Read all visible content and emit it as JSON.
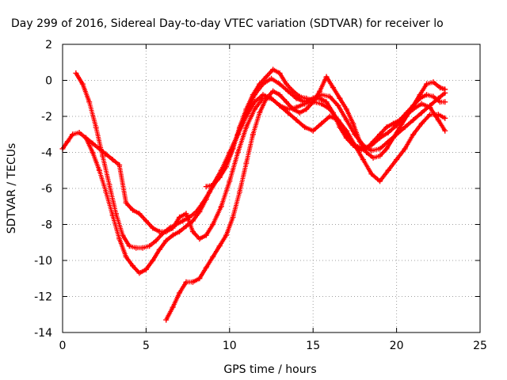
{
  "chart_data": {
    "type": "scatter",
    "title": "Day 299 of 2016, Sidereal Day-to-day VTEC variation (SDTVAR) for receiver lo",
    "xlabel": "GPS time / hours",
    "ylabel": "SDTVAR / TECUs",
    "xlim": [
      0,
      25
    ],
    "ylim": [
      -14,
      2
    ],
    "x_ticks": [
      0,
      5,
      10,
      15,
      20,
      25
    ],
    "y_ticks": [
      -14,
      -12,
      -10,
      -8,
      -6,
      -4,
      -2,
      0,
      2
    ],
    "grid": true,
    "marker": "+",
    "color": "#ff0000",
    "series": [
      {
        "x": [
          0,
          0.3,
          0.6,
          1.0,
          1.4,
          1.8,
          2.2,
          2.6,
          3.0,
          3.4,
          3.8,
          4.2,
          4.6,
          5.0,
          5.4,
          5.8,
          6.2,
          6.6,
          7.0,
          7.4,
          7.8,
          8.2,
          8.6,
          9.0,
          9.5,
          10.0,
          10.5,
          11.0,
          11.5,
          12.0,
          12.5,
          13.0,
          13.5,
          14.0,
          14.5,
          15.0,
          15.5,
          16.0,
          16.5,
          17.0,
          17.5,
          18.0,
          18.5,
          19.0,
          19.5,
          20.0,
          20.5,
          21.0,
          21.5,
          22.0,
          22.5,
          22.9
        ],
        "y": [
          -3.8,
          -3.4,
          -3.0,
          -2.9,
          -3.2,
          -4.0,
          -5.0,
          -6.2,
          -7.5,
          -8.8,
          -9.8,
          -10.3,
          -10.7,
          -10.5,
          -10.0,
          -9.4,
          -8.9,
          -8.6,
          -8.4,
          -8.1,
          -7.8,
          -7.3,
          -6.6,
          -5.8,
          -5.0,
          -4.0,
          -3.0,
          -2.0,
          -1.2,
          -0.8,
          -1.0,
          -1.4,
          -1.6,
          -1.5,
          -1.3,
          -1.2,
          -1.3,
          -1.6,
          -2.2,
          -3.0,
          -3.6,
          -3.8,
          -3.6,
          -3.2,
          -2.9,
          -2.5,
          -2.0,
          -1.6,
          -1.3,
          -1.5,
          -2.2,
          -2.8
        ]
      },
      {
        "x": [
          0.8,
          1.2,
          1.6,
          2.0,
          2.4,
          2.8,
          3.2,
          3.6,
          4.0,
          4.4,
          4.8,
          5.2,
          5.6,
          6.0,
          6.4,
          6.8,
          7.2,
          7.6,
          8.0,
          8.4,
          8.8,
          9.2,
          9.6,
          10.0,
          10.5,
          11.0,
          11.5,
          12.0,
          12.5,
          13.0,
          13.5,
          14.0,
          14.5,
          15.0,
          15.5,
          16.0,
          16.5,
          17.0,
          17.5,
          18.0,
          18.5,
          19.0,
          19.5,
          20.0,
          20.5,
          21.0,
          21.5,
          22.0,
          22.5,
          22.9
        ],
        "y": [
          0.4,
          -0.2,
          -1.2,
          -2.6,
          -4.2,
          -5.8,
          -7.4,
          -8.6,
          -9.2,
          -9.3,
          -9.3,
          -9.2,
          -8.9,
          -8.5,
          -8.2,
          -8.0,
          -7.8,
          -7.6,
          -7.3,
          -6.8,
          -6.2,
          -5.6,
          -5.0,
          -4.2,
          -3.0,
          -1.8,
          -0.8,
          -0.2,
          0.1,
          -0.2,
          -0.6,
          -1.0,
          -1.2,
          -1.0,
          -0.8,
          -0.9,
          -1.4,
          -2.2,
          -3.0,
          -3.6,
          -3.9,
          -3.8,
          -3.4,
          -3.0,
          -2.6,
          -2.2,
          -1.8,
          -1.4,
          -1.0,
          -0.7
        ]
      },
      {
        "x": [
          1.4,
          1.8,
          2.2,
          2.6,
          3.0,
          3.4,
          3.8,
          4.2,
          4.6,
          5.0,
          5.4,
          5.8,
          6.2,
          6.6,
          7.0,
          7.4,
          7.8,
          8.2,
          8.6,
          9.0,
          9.5,
          10.0,
          10.5,
          11.0,
          11.5,
          12.0,
          12.5,
          13.0,
          13.5,
          14.0,
          14.5,
          15.0,
          15.5,
          16.0,
          16.5,
          17.0,
          17.5,
          18.0,
          18.5,
          19.0,
          19.5,
          20.0,
          20.5,
          21.0,
          21.5,
          22.0,
          22.5,
          22.9
        ],
        "y": [
          -3.2,
          -3.5,
          -3.8,
          -4.1,
          -4.4,
          -4.7,
          -6.8,
          -7.2,
          -7.4,
          -7.8,
          -8.2,
          -8.4,
          -8.4,
          -8.2,
          -7.6,
          -7.4,
          -8.4,
          -8.8,
          -8.6,
          -8.0,
          -7.0,
          -5.6,
          -4.0,
          -2.6,
          -1.6,
          -1.0,
          -1.0,
          -1.4,
          -1.8,
          -2.2,
          -2.6,
          -2.8,
          -2.4,
          -2.0,
          -2.2,
          -2.8,
          -3.6,
          -4.4,
          -5.2,
          -5.6,
          -5.0,
          -4.4,
          -3.8,
          -3.0,
          -2.4,
          -1.9,
          -1.9,
          -2.1
        ]
      },
      {
        "x": [
          6.2,
          6.6,
          7.0,
          7.4,
          7.8,
          8.2,
          8.6,
          9.0,
          9.4,
          9.8,
          10.2,
          10.6,
          11.0,
          11.4,
          11.8,
          12.2,
          12.6,
          13.0,
          13.4,
          13.8,
          14.2,
          14.6,
          15.0,
          15.4,
          15.8,
          16.2,
          16.6,
          17.0,
          17.4,
          17.8,
          18.2,
          18.6,
          19.0,
          19.4,
          19.8,
          20.2,
          20.6,
          21.0,
          21.4,
          21.8,
          22.2,
          22.6,
          22.9
        ],
        "y": [
          -13.3,
          -12.6,
          -11.8,
          -11.2,
          -11.2,
          -11.0,
          -10.4,
          -9.8,
          -9.2,
          -8.6,
          -7.6,
          -6.2,
          -4.6,
          -3.0,
          -1.8,
          -1.0,
          -0.6,
          -0.8,
          -1.2,
          -1.6,
          -1.8,
          -1.6,
          -1.2,
          -0.6,
          0.2,
          -0.4,
          -1.0,
          -1.6,
          -2.4,
          -3.4,
          -4.0,
          -4.3,
          -4.2,
          -3.8,
          -3.2,
          -2.6,
          -2.0,
          -1.4,
          -0.8,
          -0.2,
          -0.1,
          -0.4,
          -0.5
        ]
      },
      {
        "x": [
          8.6,
          9.0,
          9.4,
          9.8,
          10.2,
          10.6,
          11.0,
          11.4,
          11.8,
          12.2,
          12.6,
          13.0,
          13.4,
          13.8,
          14.2,
          14.6,
          15.0,
          15.4,
          15.8,
          16.2,
          16.6,
          17.0,
          17.4,
          17.8,
          18.2,
          18.6,
          19.0,
          19.4,
          19.8,
          20.2,
          20.6,
          21.0,
          21.4,
          21.8,
          22.2,
          22.6,
          22.9
        ],
        "y": [
          -5.9,
          -5.8,
          -5.4,
          -4.8,
          -3.8,
          -2.6,
          -1.6,
          -0.8,
          -0.2,
          0.2,
          0.6,
          0.4,
          -0.2,
          -0.6,
          -0.9,
          -1.0,
          -1.1,
          -1.0,
          -1.2,
          -1.8,
          -2.6,
          -3.2,
          -3.6,
          -3.9,
          -3.8,
          -3.4,
          -3.0,
          -2.6,
          -2.4,
          -2.2,
          -1.8,
          -1.4,
          -1.0,
          -0.8,
          -0.9,
          -1.2,
          -1.2
        ]
      }
    ]
  }
}
